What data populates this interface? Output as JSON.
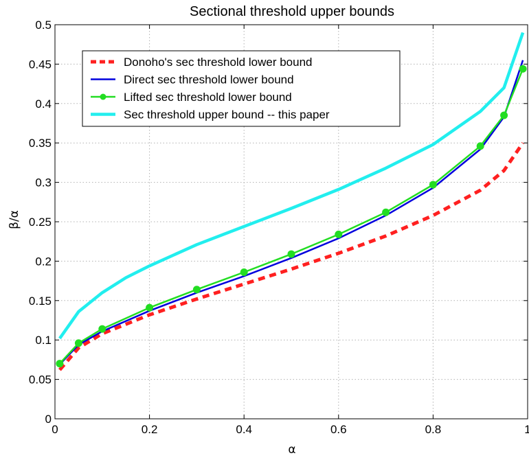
{
  "chart_data": {
    "type": "line",
    "title": "Sectional threshold upper bounds",
    "xlabel": "α",
    "ylabel": "β/α",
    "xlim": [
      0,
      1
    ],
    "ylim": [
      0,
      0.5
    ],
    "xticks": [
      0,
      0.2,
      0.4,
      0.6,
      0.8,
      1
    ],
    "xtick_labels": [
      "0",
      "0.2",
      "0.4",
      "0.6",
      "0.8",
      "1"
    ],
    "yticks": [
      0,
      0.05,
      0.1,
      0.15,
      0.2,
      0.25,
      0.3,
      0.35,
      0.4,
      0.45,
      0.5
    ],
    "ytick_labels": [
      "0",
      "0.05",
      "0.1",
      "0.15",
      "0.2",
      "0.25",
      "0.3",
      "0.35",
      "0.4",
      "0.45",
      "0.5"
    ],
    "grid": true,
    "legend_position": "top-left",
    "series": [
      {
        "name": "Donoho's sec threshold lower bound",
        "color": "#ff2020",
        "style": "dashed",
        "markers": false,
        "x": [
          0.01,
          0.05,
          0.1,
          0.2,
          0.3,
          0.4,
          0.5,
          0.6,
          0.7,
          0.8,
          0.9,
          0.95,
          0.99
        ],
        "y": [
          0.062,
          0.09,
          0.108,
          0.132,
          0.152,
          0.171,
          0.19,
          0.21,
          0.232,
          0.258,
          0.29,
          0.315,
          0.35
        ]
      },
      {
        "name": "Direct sec threshold lower bound",
        "color": "#0000dd",
        "style": "solid",
        "markers": false,
        "x": [
          0.01,
          0.05,
          0.1,
          0.2,
          0.3,
          0.4,
          0.5,
          0.6,
          0.7,
          0.8,
          0.9,
          0.95,
          0.99
        ],
        "y": [
          0.069,
          0.094,
          0.111,
          0.137,
          0.16,
          0.181,
          0.204,
          0.229,
          0.258,
          0.293,
          0.342,
          0.383,
          0.455
        ]
      },
      {
        "name": "Lifted sec threshold lower bound",
        "color": "#22dd22",
        "style": "solid",
        "markers": true,
        "x": [
          0.01,
          0.05,
          0.1,
          0.2,
          0.3,
          0.4,
          0.5,
          0.6,
          0.7,
          0.8,
          0.9,
          0.95,
          0.99
        ],
        "y": [
          0.07,
          0.096,
          0.114,
          0.141,
          0.164,
          0.186,
          0.209,
          0.234,
          0.262,
          0.297,
          0.346,
          0.385,
          0.444
        ]
      },
      {
        "name": "Sec threshold upper bound -- this paper",
        "color": "#22eeee",
        "style": "solid",
        "markers": false,
        "x": [
          0.01,
          0.05,
          0.1,
          0.15,
          0.2,
          0.3,
          0.4,
          0.5,
          0.6,
          0.7,
          0.8,
          0.9,
          0.95,
          0.99
        ],
        "y": [
          0.102,
          0.136,
          0.16,
          0.179,
          0.194,
          0.221,
          0.244,
          0.267,
          0.291,
          0.318,
          0.348,
          0.39,
          0.42,
          0.49
        ]
      }
    ]
  }
}
